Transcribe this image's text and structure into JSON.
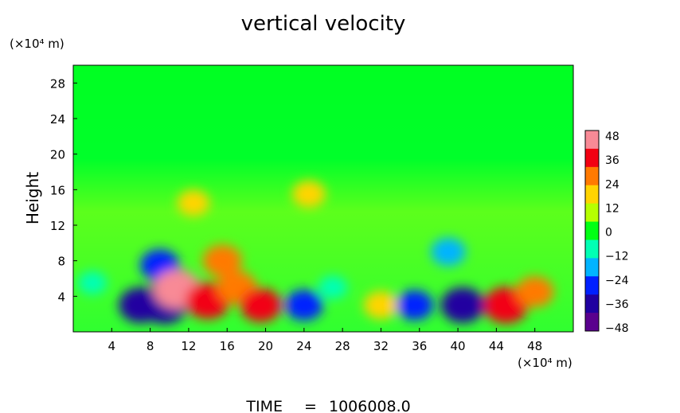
{
  "chart_data": {
    "type": "heatmap",
    "title": "vertical velocity",
    "ylabel": "Height",
    "y_unit": "(×10⁴ m)",
    "x_unit": "(×10⁴ m)",
    "xlim": [
      0,
      52
    ],
    "ylim": [
      0,
      30
    ],
    "x_ticks": [
      "4",
      "8",
      "12",
      "16",
      "20",
      "24",
      "28",
      "32",
      "36",
      "40",
      "44",
      "48"
    ],
    "y_ticks": [
      "4",
      "8",
      "12",
      "16",
      "20",
      "24",
      "28"
    ],
    "colorbar": {
      "min": -48,
      "max": 48,
      "ticks": [
        "48",
        "36",
        "24",
        "12",
        "0",
        "−12",
        "−24",
        "−36",
        "−48"
      ],
      "colors": [
        "#f88a96",
        "#f20012",
        "#ff7a00",
        "#ffd400",
        "#b6ff00",
        "#00ff14",
        "#00ffb4",
        "#00b4ff",
        "#0020ff",
        "#2000a0",
        "#5a008e"
      ]
    },
    "features": [
      {
        "x": 2.0,
        "y": 5.5,
        "value": -12
      },
      {
        "x": 7.0,
        "y": 3.0,
        "value": -38
      },
      {
        "x": 9.5,
        "y": 3.0,
        "value": -42
      },
      {
        "x": 10.5,
        "y": 5.0,
        "value": -45
      },
      {
        "x": 9.0,
        "y": 7.5,
        "value": -30
      },
      {
        "x": 10.8,
        "y": 4.8,
        "value": 45
      },
      {
        "x": 12.5,
        "y": 14.5,
        "value": 18
      },
      {
        "x": 14.0,
        "y": 3.5,
        "value": 40
      },
      {
        "x": 17.0,
        "y": 5.0,
        "value": 32
      },
      {
        "x": 15.5,
        "y": 8.0,
        "value": 30
      },
      {
        "x": 19.5,
        "y": 3.0,
        "value": 34
      },
      {
        "x": 24.0,
        "y": 3.0,
        "value": -28
      },
      {
        "x": 24.5,
        "y": 15.5,
        "value": 20
      },
      {
        "x": 27.0,
        "y": 5.0,
        "value": -12
      },
      {
        "x": 32.0,
        "y": 3.0,
        "value": 22
      },
      {
        "x": 35.5,
        "y": 3.0,
        "value": -26
      },
      {
        "x": 39.0,
        "y": 9.0,
        "value": -22
      },
      {
        "x": 40.5,
        "y": 3.0,
        "value": -38
      },
      {
        "x": 45.0,
        "y": 3.0,
        "value": 40
      },
      {
        "x": 48.0,
        "y": 4.5,
        "value": 28
      }
    ]
  },
  "time_label": "TIME",
  "time_eq": "=",
  "time_value": "1006008.0"
}
